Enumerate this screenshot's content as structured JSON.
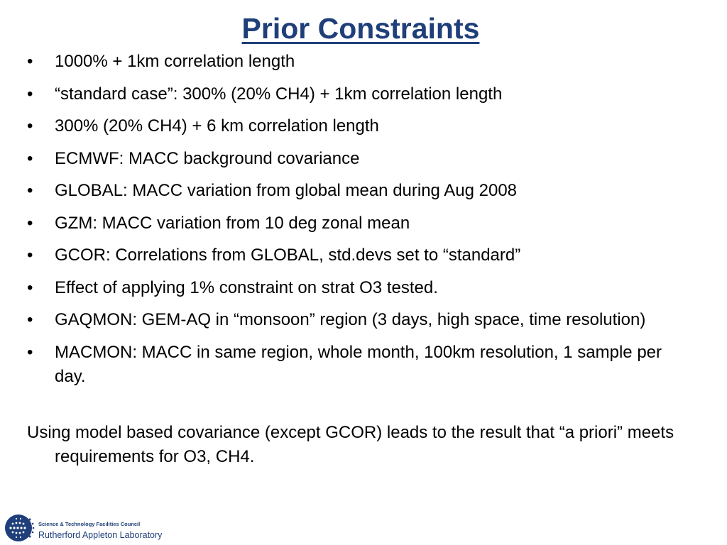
{
  "slide": {
    "title": "Prior Constraints",
    "bullet_marker": "•",
    "bullets": [
      "1000% + 1km correlation length",
      "“standard case”: 300% (20% CH4) + 1km correlation length",
      "300% (20% CH4) + 6 km correlation length",
      "ECMWF: MACC background covariance",
      "GLOBAL:  MACC variation from global mean during Aug 2008",
      "GZM: MACC variation from 10 deg zonal mean",
      "GCOR: Correlations from GLOBAL, std.devs set to “standard”",
      "Effect of applying 1% constraint on strat O3 tested.",
      "GAQMON: GEM-AQ in “monsoon” region (3 days, high space, time resolution)",
      "MACMON: MACC in same region, whole month, 100km resolution, 1 sample per day."
    ],
    "summary": "Using model based covariance (except GCOR) leads to the result that “a priori” meets requirements for O3, CH4."
  },
  "footer": {
    "council": "Science & Technology Facilities Council",
    "lab": "Rutherford Appleton Laboratory",
    "logo_icon": "stfc-logo-icon"
  },
  "colors": {
    "title": "#1f3f7a",
    "logo_navy": "#1f3f7a"
  }
}
